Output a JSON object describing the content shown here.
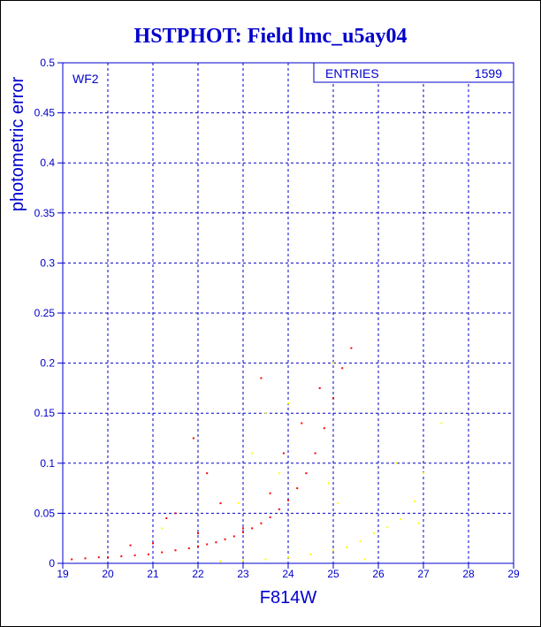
{
  "chart_data": {
    "type": "scatter",
    "title": "HSTPHOT: Field lmc_u5ay04",
    "xlabel": "F814W",
    "ylabel": "photometric error",
    "xlim": [
      19,
      29
    ],
    "ylim": [
      0,
      0.5
    ],
    "xticks": [
      "19",
      "20",
      "21",
      "22",
      "23",
      "24",
      "25",
      "26",
      "27",
      "28",
      "29"
    ],
    "yticks": [
      "0",
      "0.05",
      "0.1",
      "0.15",
      "0.2",
      "0.25",
      "0.3",
      "0.35",
      "0.4",
      "0.45",
      "0.5"
    ],
    "grid": true,
    "panel_label": "WF2",
    "stats_box": {
      "label": "ENTRIES",
      "value": "1599",
      "placement": "top-right"
    },
    "series": [
      {
        "color": "#ff0000",
        "description": "main error sequence",
        "points": [
          [
            19.2,
            0.004
          ],
          [
            19.5,
            0.005
          ],
          [
            19.8,
            0.006
          ],
          [
            20.0,
            0.006
          ],
          [
            20.3,
            0.007
          ],
          [
            20.6,
            0.008
          ],
          [
            20.9,
            0.009
          ],
          [
            21.2,
            0.011
          ],
          [
            21.5,
            0.013
          ],
          [
            21.8,
            0.015
          ],
          [
            22.0,
            0.017
          ],
          [
            22.2,
            0.019
          ],
          [
            22.4,
            0.021
          ],
          [
            22.6,
            0.024
          ],
          [
            22.8,
            0.027
          ],
          [
            23.0,
            0.031
          ],
          [
            23.2,
            0.035
          ],
          [
            23.4,
            0.04
          ],
          [
            23.6,
            0.046
          ],
          [
            23.8,
            0.054
          ],
          [
            24.0,
            0.063
          ],
          [
            24.2,
            0.075
          ],
          [
            24.4,
            0.09
          ],
          [
            24.6,
            0.11
          ],
          [
            24.8,
            0.135
          ],
          [
            25.0,
            0.165
          ],
          [
            25.2,
            0.195
          ],
          [
            25.4,
            0.215
          ],
          [
            21.5,
            0.05
          ],
          [
            21.3,
            0.045
          ],
          [
            21.9,
            0.125
          ],
          [
            22.2,
            0.09
          ],
          [
            22.5,
            0.06
          ],
          [
            23.4,
            0.185
          ],
          [
            23.0,
            0.035
          ],
          [
            23.6,
            0.07
          ],
          [
            23.9,
            0.11
          ],
          [
            24.3,
            0.14
          ],
          [
            24.7,
            0.175
          ],
          [
            22.0,
            0.03
          ],
          [
            21.0,
            0.02
          ],
          [
            20.5,
            0.018
          ]
        ]
      },
      {
        "color": "#ffff00",
        "description": "secondary sequence",
        "points": [
          [
            22.5,
            0.002
          ],
          [
            23.0,
            0.003
          ],
          [
            23.5,
            0.004
          ],
          [
            24.0,
            0.006
          ],
          [
            24.5,
            0.009
          ],
          [
            25.0,
            0.013
          ],
          [
            25.3,
            0.016
          ],
          [
            25.6,
            0.022
          ],
          [
            25.9,
            0.03
          ],
          [
            26.2,
            0.036
          ],
          [
            26.5,
            0.044
          ],
          [
            26.8,
            0.062
          ],
          [
            27.0,
            0.09
          ],
          [
            27.4,
            0.14
          ],
          [
            26.4,
            0.1
          ],
          [
            24.0,
            0.16
          ],
          [
            23.5,
            0.15
          ],
          [
            23.2,
            0.11
          ],
          [
            25.0,
            0.2
          ],
          [
            24.9,
            0.08
          ],
          [
            23.8,
            0.09
          ],
          [
            25.1,
            0.06
          ],
          [
            21.2,
            0.035
          ],
          [
            22.9,
            0.06
          ],
          [
            26.9,
            0.04
          ],
          [
            25.7,
            0.004
          ]
        ]
      }
    ]
  }
}
